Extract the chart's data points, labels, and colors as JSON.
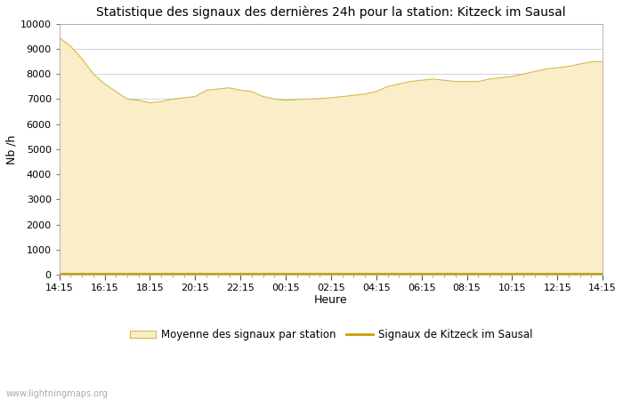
{
  "title": "Statistique des signaux des dernières 24h pour la station: Kitzeck im Sausal",
  "xlabel": "Heure",
  "ylabel": "Nb /h",
  "ylim": [
    0,
    10000
  ],
  "yticks": [
    0,
    1000,
    2000,
    3000,
    4000,
    5000,
    6000,
    7000,
    8000,
    9000,
    10000
  ],
  "xtick_labels": [
    "14:15",
    "16:15",
    "18:15",
    "20:15",
    "22:15",
    "00:15",
    "02:15",
    "04:15",
    "06:15",
    "08:15",
    "10:15",
    "12:15",
    "14:15"
  ],
  "fill_color": "#faeec8",
  "fill_edge_color": "#d4b84a",
  "line_color": "#c8a000",
  "background_color": "#ffffff",
  "grid_color": "#cccccc",
  "watermark": "www.lightningmaps.org",
  "legend_fill_label": "Moyenne des signaux par station",
  "legend_line_label": "Signaux de Kitzeck im Sausal",
  "x_values": [
    0,
    1,
    2,
    3,
    4,
    5,
    6,
    7,
    8,
    9,
    10,
    11,
    12,
    13,
    14,
    15,
    16,
    17,
    18,
    19,
    20,
    21,
    22,
    23,
    24,
    25,
    26,
    27,
    28,
    29,
    30,
    31,
    32,
    33,
    34,
    35,
    36,
    37,
    38,
    39,
    40,
    41,
    42,
    43,
    44,
    45,
    46,
    47,
    48
  ],
  "fill_values": [
    9450,
    9100,
    8600,
    8000,
    7600,
    7300,
    7000,
    6950,
    6850,
    6900,
    7000,
    7050,
    7100,
    7350,
    7400,
    7450,
    7350,
    7300,
    7100,
    7000,
    6950,
    6980,
    7000,
    7020,
    7050,
    7100,
    7150,
    7200,
    7300,
    7500,
    7600,
    7700,
    7750,
    7800,
    7750,
    7700,
    7700,
    7700,
    7800,
    7850,
    7900,
    8000,
    8100,
    8200,
    8250,
    8300,
    8400,
    8480,
    8500
  ],
  "line_values": [
    50,
    50,
    50,
    50,
    50,
    50,
    50,
    50,
    50,
    50,
    50,
    50,
    50,
    50,
    50,
    50,
    50,
    50,
    50,
    50,
    50,
    50,
    50,
    50,
    50,
    50,
    50,
    50,
    50,
    50,
    50,
    50,
    50,
    50,
    50,
    50,
    50,
    50,
    50,
    50,
    50,
    50,
    50,
    50,
    50,
    50,
    50,
    50,
    50
  ]
}
